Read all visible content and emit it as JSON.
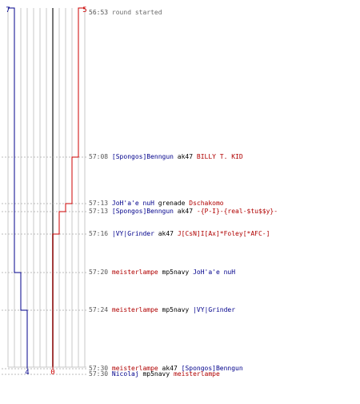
{
  "colors": {
    "blue_team": "#00008b",
    "red_team": "#cc0000",
    "grid": "#c8c8c8",
    "center_line": "#777777",
    "dashed": "#bbbbbb"
  },
  "chart_data": {
    "type": "line",
    "x_direction": "horizontal = remaining players (0 to 7)",
    "blue_start": "7",
    "red_start": "5",
    "blue_end": "4",
    "red_end": "0",
    "series": [
      {
        "name": "blue",
        "color": "#00008b",
        "steps": [
          {
            "t": "56:53",
            "v": 7
          },
          {
            "t": "57:20",
            "v": 6
          },
          {
            "t": "57:24",
            "v": 5
          },
          {
            "t": "57:30",
            "v": 4
          }
        ]
      },
      {
        "name": "red",
        "color": "#cc0000",
        "steps": [
          {
            "t": "56:53",
            "v": 5
          },
          {
            "t": "57:08",
            "v": 4
          },
          {
            "t": "57:13",
            "v": 3
          },
          {
            "t": "57:13",
            "v": 2
          },
          {
            "t": "57:16",
            "v": 1
          },
          {
            "t": "57:30",
            "v": 0
          }
        ]
      }
    ]
  },
  "events": [
    {
      "time": "56:53",
      "parts": [
        {
          "text": "round started",
          "c": "gray"
        }
      ]
    },
    {
      "time": "57:08",
      "parts": [
        {
          "text": "[Spongos]Benngun",
          "c": "blue"
        },
        {
          "text": " ak47 ",
          "c": "black"
        },
        {
          "text": "BILLY T. KID",
          "c": "red"
        }
      ]
    },
    {
      "time": "57:13",
      "parts": [
        {
          "text": "JoH'a'e nuH",
          "c": "blue"
        },
        {
          "text": " grenade ",
          "c": "black"
        },
        {
          "text": "Dschakomo",
          "c": "red"
        }
      ]
    },
    {
      "time": "57:13",
      "parts": [
        {
          "text": "[Spongos]Benngun",
          "c": "blue"
        },
        {
          "text": " ak47 ",
          "c": "black"
        },
        {
          "text": "-{P-I}-{real-$tu$$y}-",
          "c": "red"
        }
      ]
    },
    {
      "time": "57:16",
      "parts": [
        {
          "text": "|VY|Grinder",
          "c": "blue"
        },
        {
          "text": " ak47 ",
          "c": "black"
        },
        {
          "text": "J[CsN]I[Ax]*Foley[*AFC-]",
          "c": "red"
        }
      ]
    },
    {
      "time": "57:20",
      "parts": [
        {
          "text": "meisterlampe",
          "c": "red"
        },
        {
          "text": " mp5navy ",
          "c": "black"
        },
        {
          "text": "JoH'a'e nuH",
          "c": "blue"
        }
      ]
    },
    {
      "time": "57:24",
      "parts": [
        {
          "text": "meisterlampe",
          "c": "red"
        },
        {
          "text": " mp5navy ",
          "c": "black"
        },
        {
          "text": "|VY|Grinder",
          "c": "blue"
        }
      ]
    },
    {
      "time": "57:30",
      "parts": [
        {
          "text": "meisterlampe",
          "c": "red"
        },
        {
          "text": " ak47 ",
          "c": "black"
        },
        {
          "text": "[Spongos]Benngun",
          "c": "blue"
        }
      ]
    },
    {
      "time": "57:30",
      "parts": [
        {
          "text": "Nicolaj",
          "c": "blue"
        },
        {
          "text": " mp5navy ",
          "c": "black"
        },
        {
          "text": "meisterlampe",
          "c": "red"
        }
      ]
    }
  ]
}
